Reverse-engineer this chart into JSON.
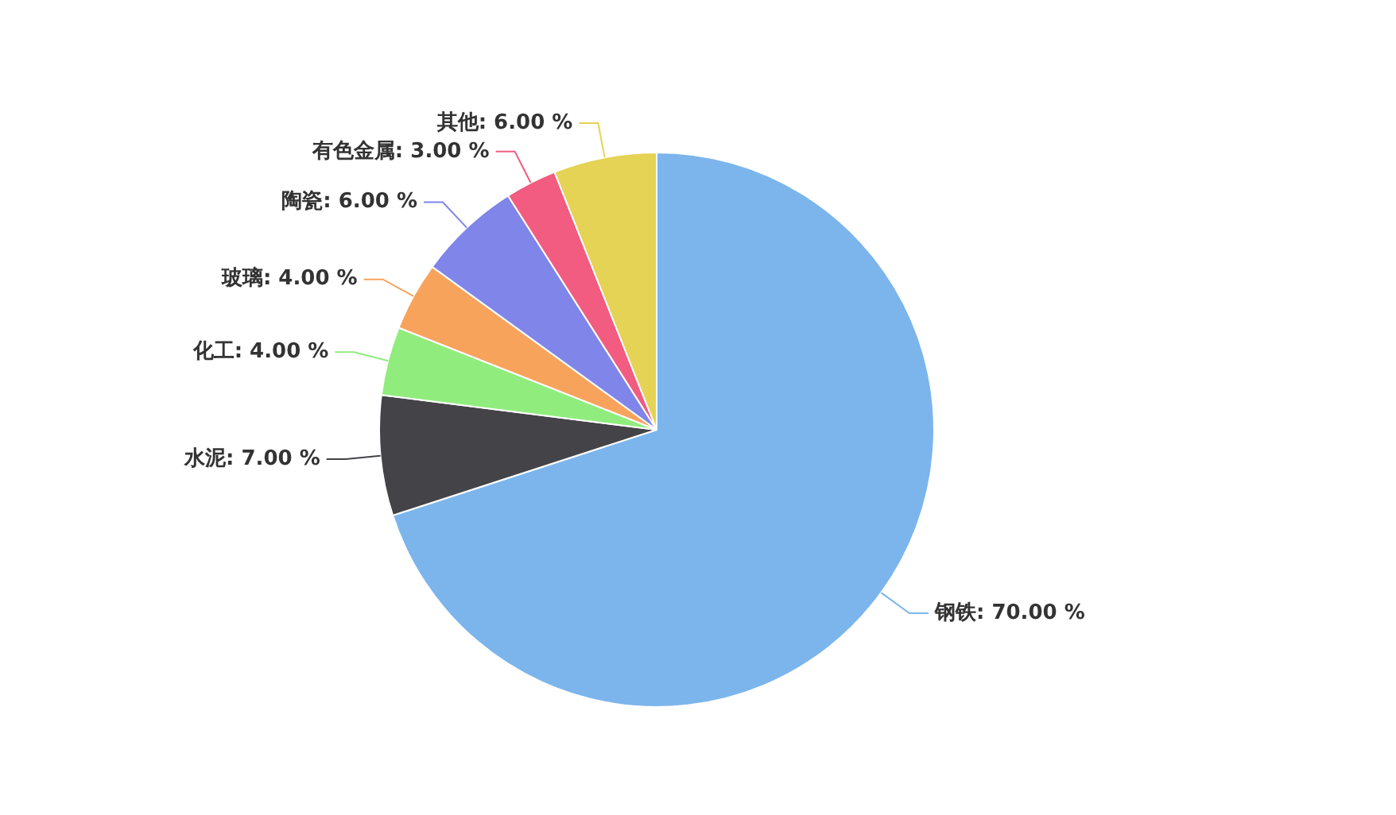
{
  "chart_data": {
    "type": "pie",
    "categories": [
      "钢铁",
      "水泥",
      "化工",
      "玻璃",
      "陶瓷",
      "有色金属",
      "其他"
    ],
    "values": [
      70,
      7,
      4,
      4,
      6,
      3,
      6
    ],
    "value_labels": [
      "70.00 %",
      "7.00 %",
      "4.00 %",
      "4.00 %",
      "6.00 %",
      "3.00 %",
      "6.00 %"
    ],
    "colors": [
      "#7cb5ec",
      "#434348",
      "#90ed7d",
      "#f7a35c",
      "#8085e9",
      "#f15c80",
      "#e4d354"
    ],
    "legend": false
  }
}
